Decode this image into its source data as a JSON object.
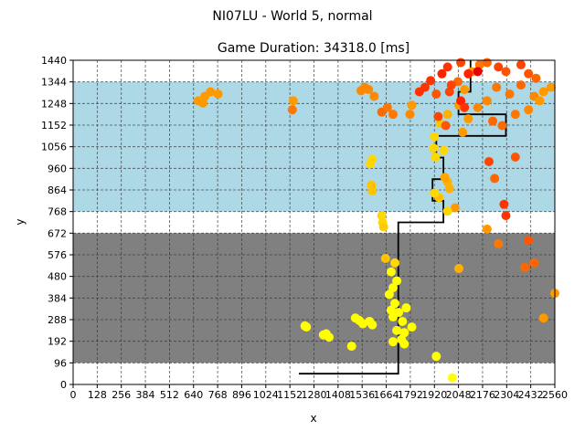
{
  "chart_data": {
    "type": "scatter",
    "suptitle": "NI07LU - World 5, normal",
    "title": "Game Duration: 34318.0 [ms]",
    "xlabel": "x",
    "ylabel": "y",
    "xlim": [
      0,
      2560
    ],
    "ylim": [
      0,
      1440
    ],
    "grid": true,
    "xticks": [
      0,
      128,
      256,
      384,
      512,
      640,
      768,
      896,
      1024,
      1152,
      1280,
      1408,
      1536,
      1664,
      1792,
      1920,
      2048,
      2176,
      2304,
      2432,
      2560
    ],
    "yticks": [
      0,
      96,
      192,
      288,
      384,
      480,
      576,
      672,
      768,
      864,
      960,
      1056,
      1152,
      1248,
      1344,
      1440
    ],
    "xtick_labels": [
      "0",
      "128",
      "256",
      "384",
      "512",
      "640",
      "768",
      "896",
      "1024",
      "1152",
      "1280",
      "1408",
      "1536",
      "1664",
      "1792",
      "1920",
      "2048",
      "2176",
      "2304",
      "2432",
      "2560"
    ],
    "ytick_labels": [
      "0",
      "96",
      "192",
      "288",
      "384",
      "480",
      "576",
      "672",
      "768",
      "864",
      "960",
      "1056",
      "1152",
      "1248",
      "1344",
      "1440"
    ],
    "regions": [
      {
        "y_from": 96,
        "y_to": 672,
        "color": "#808080"
      },
      {
        "y_from": 768,
        "y_to": 1344,
        "color": "#add8e6"
      }
    ],
    "path": [
      [
        1200,
        48
      ],
      [
        1728,
        48
      ],
      [
        1728,
        720
      ],
      [
        1968,
        720
      ],
      [
        1968,
        816
      ],
      [
        1910,
        816
      ],
      [
        1910,
        912
      ],
      [
        1968,
        912
      ],
      [
        1968,
        1008
      ],
      [
        1930,
        1008
      ],
      [
        1930,
        1104
      ],
      [
        2300,
        1104
      ],
      [
        2300,
        1200
      ],
      [
        2048,
        1200
      ],
      [
        2048,
        1300
      ],
      [
        2112,
        1300
      ],
      [
        2112,
        1440
      ]
    ],
    "points": [
      [
        1232,
        260,
        "#ffff00"
      ],
      [
        1240,
        255,
        "#ffff00"
      ],
      [
        1345,
        225,
        "#ffff00"
      ],
      [
        1360,
        210,
        "#ffff00"
      ],
      [
        1330,
        220,
        "#ffff00"
      ],
      [
        1480,
        170,
        "#ffff00"
      ],
      [
        1500,
        295,
        "#ffff00"
      ],
      [
        1520,
        285,
        "#ffff00"
      ],
      [
        1540,
        270,
        "#ffff00"
      ],
      [
        1575,
        280,
        "#ffff00"
      ],
      [
        1590,
        265,
        "#ffff00"
      ],
      [
        1700,
        300,
        "#ffff00"
      ],
      [
        1720,
        240,
        "#ffff00"
      ],
      [
        1690,
        330,
        "#ffff00"
      ],
      [
        1710,
        360,
        "#ffff00"
      ],
      [
        1730,
        320,
        "#ffff00"
      ],
      [
        1750,
        280,
        "#ffff00"
      ],
      [
        1760,
        230,
        "#ffff00"
      ],
      [
        1745,
        200,
        "#ffff00"
      ],
      [
        1700,
        190,
        "#ffff00"
      ],
      [
        1680,
        400,
        "#ffff00"
      ],
      [
        1700,
        430,
        "#ffff00"
      ],
      [
        1720,
        460,
        "#ffff00"
      ],
      [
        1690,
        500,
        "#ffff00"
      ],
      [
        1710,
        540,
        "#ffd700"
      ],
      [
        1660,
        560,
        "#ffc300"
      ],
      [
        1770,
        340,
        "#ffff00"
      ],
      [
        1800,
        255,
        "#ffff00"
      ],
      [
        1760,
        180,
        "#ffff00"
      ],
      [
        1930,
        125,
        "#ffff00"
      ],
      [
        2015,
        30,
        "#ffff00"
      ],
      [
        1640,
        750,
        "#ffd700"
      ],
      [
        1645,
        720,
        "#ffd700"
      ],
      [
        1650,
        700,
        "#ffcc00"
      ],
      [
        1580,
        980,
        "#ffd700"
      ],
      [
        1590,
        1000,
        "#ffd700"
      ],
      [
        1585,
        885,
        "#ffc300"
      ],
      [
        1590,
        860,
        "#ffc300"
      ],
      [
        1945,
        830,
        "#ffc300"
      ],
      [
        1920,
        850,
        "#ffd700"
      ],
      [
        1990,
        900,
        "#ffb000"
      ],
      [
        2000,
        870,
        "#ffb000"
      ],
      [
        1975,
        920,
        "#ffa500"
      ],
      [
        1970,
        1040,
        "#ffd700"
      ],
      [
        1920,
        1100,
        "#ffd700"
      ],
      [
        1915,
        1050,
        "#ffd700"
      ],
      [
        1925,
        1010,
        "#ffd700"
      ],
      [
        1950,
        1160,
        "#ffc300"
      ],
      [
        2050,
        1240,
        "#ff9900"
      ],
      [
        2080,
        1310,
        "#ff9900"
      ],
      [
        2045,
        1345,
        "#ff6a00"
      ],
      [
        1990,
        1200,
        "#ffb000"
      ],
      [
        2070,
        1120,
        "#ff9900"
      ],
      [
        2100,
        1180,
        "#ff9900"
      ],
      [
        2150,
        1230,
        "#ff8800"
      ],
      [
        2200,
        1260,
        "#ff8800"
      ],
      [
        2250,
        1320,
        "#ff7700"
      ],
      [
        2320,
        1290,
        "#ff7700"
      ],
      [
        2380,
        1330,
        "#ff6600"
      ],
      [
        2450,
        1280,
        "#ff8800"
      ],
      [
        2500,
        1300,
        "#ff9900"
      ],
      [
        2540,
        1320,
        "#ff9900"
      ],
      [
        2480,
        1260,
        "#ff9900"
      ],
      [
        2420,
        1220,
        "#ff8800"
      ],
      [
        2350,
        1200,
        "#ff7700"
      ],
      [
        2280,
        1150,
        "#ff6a00"
      ],
      [
        2230,
        1170,
        "#ff6600"
      ],
      [
        2120,
        1390,
        "#ff9900"
      ],
      [
        2160,
        1420,
        "#ff7700"
      ],
      [
        2200,
        1430,
        "#ff6600"
      ],
      [
        2260,
        1410,
        "#ff4400"
      ],
      [
        2300,
        1390,
        "#ff5500"
      ],
      [
        2380,
        1420,
        "#ff4400"
      ],
      [
        2420,
        1380,
        "#ff5500"
      ],
      [
        2460,
        1360,
        "#ff6600"
      ],
      [
        1870,
        1320,
        "#ff3300"
      ],
      [
        1840,
        1300,
        "#ff3300"
      ],
      [
        1900,
        1350,
        "#ff3300"
      ],
      [
        1960,
        1380,
        "#ff2200"
      ],
      [
        1990,
        1410,
        "#ff3300"
      ],
      [
        2010,
        1330,
        "#ff4400"
      ],
      [
        1930,
        1290,
        "#ff5500"
      ],
      [
        2000,
        1300,
        "#ff4400"
      ],
      [
        2060,
        1260,
        "#ff2200"
      ],
      [
        2080,
        1230,
        "#ff3300"
      ],
      [
        2100,
        1380,
        "#ff2200"
      ],
      [
        2150,
        1390,
        "#e60000"
      ],
      [
        1940,
        1190,
        "#ff4400"
      ],
      [
        1980,
        1150,
        "#ff5500"
      ],
      [
        2060,
        1430,
        "#ff4400"
      ],
      [
        2210,
        990,
        "#ff4400"
      ],
      [
        2240,
        915,
        "#ff6600"
      ],
      [
        2290,
        800,
        "#ff3300"
      ],
      [
        2300,
        750,
        "#ff3300"
      ],
      [
        2350,
        1010,
        "#ff5500"
      ],
      [
        2200,
        690,
        "#ff9900"
      ],
      [
        2260,
        625,
        "#ff7700"
      ],
      [
        2420,
        640,
        "#ff5500"
      ],
      [
        2400,
        520,
        "#ff6600"
      ],
      [
        2450,
        540,
        "#ff6600"
      ],
      [
        2500,
        295,
        "#ff9900"
      ],
      [
        2560,
        405,
        "#ff9900"
      ],
      [
        2050,
        515,
        "#ffb000"
      ],
      [
        2030,
        785,
        "#ff9900"
      ],
      [
        1990,
        770,
        "#ffd700"
      ],
      [
        1530,
        1305,
        "#ff8800"
      ],
      [
        1550,
        1320,
        "#ff8800"
      ],
      [
        1570,
        1310,
        "#ff8800"
      ],
      [
        1600,
        1280,
        "#ff8800"
      ],
      [
        1640,
        1210,
        "#ff6a00"
      ],
      [
        1670,
        1230,
        "#ff7700"
      ],
      [
        1700,
        1200,
        "#ff7700"
      ],
      [
        1790,
        1200,
        "#ff8800"
      ],
      [
        1800,
        1240,
        "#ff9900"
      ],
      [
        1170,
        1260,
        "#ff9900"
      ],
      [
        1165,
        1220,
        "#ff7700"
      ],
      [
        700,
        1280,
        "#ff9900"
      ],
      [
        690,
        1250,
        "#ff9900"
      ],
      [
        730,
        1300,
        "#ff9900"
      ],
      [
        770,
        1290,
        "#ff9900"
      ],
      [
        665,
        1260,
        "#ff9900"
      ]
    ]
  }
}
